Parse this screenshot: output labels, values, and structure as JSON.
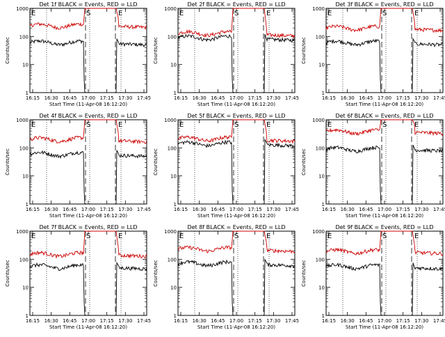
{
  "chart_data": [
    {
      "type": "line",
      "title": "Det 1f BLACK = Events, RED = LLD",
      "ylabel": "Counts/sec",
      "xlabel": "Start Time (11-Apr-08 16:12:20)",
      "xticks": [
        "16:15",
        "16:30",
        "16:45",
        "17:00",
        "17:15",
        "17:30",
        "17:45"
      ],
      "yticks": [
        "1",
        "10",
        "100",
        "1000"
      ],
      "ylim": [
        1,
        1000
      ],
      "yscale": "log",
      "markers": [
        "E",
        "S",
        "E"
      ],
      "series": [
        {
          "name": "Events",
          "color": "#000000",
          "level_before": 60,
          "level_after": 55
        },
        {
          "name": "LLD",
          "color": "#cc0000",
          "level_before": 240,
          "level_after": 230
        }
      ]
    },
    {
      "type": "line",
      "title": "Det 2f BLACK = Events, RED = LLD",
      "ylabel": "Counts/sec",
      "xlabel": "Start Time (11-Apr-08 16:12:20)",
      "xticks": [
        "16:15",
        "16:30",
        "16:45",
        "17:00",
        "17:15",
        "17:30",
        "17:45"
      ],
      "yticks": [
        "1",
        "10",
        "100",
        "1000"
      ],
      "ylim": [
        1,
        1000
      ],
      "yscale": "log",
      "markers": [
        "E",
        "S",
        "E"
      ],
      "series": [
        {
          "name": "Events",
          "color": "#000000",
          "level_before": 90,
          "level_after": 80
        },
        {
          "name": "LLD",
          "color": "#cc0000",
          "level_before": 130,
          "level_after": 115
        }
      ]
    },
    {
      "type": "line",
      "title": "Det 3f BLACK = Events, RED = LLD",
      "ylabel": "Counts/sec",
      "xlabel": "Start Time (11-Apr-08 16:12:20)",
      "xticks": [
        "16:15",
        "16:30",
        "16:45",
        "17:00",
        "17:15",
        "17:30",
        "17:45"
      ],
      "yticks": [
        "1",
        "10",
        "100",
        "1000"
      ],
      "ylim": [
        1,
        1000
      ],
      "yscale": "log",
      "markers": [
        "E",
        "S",
        "E"
      ],
      "series": [
        {
          "name": "Events",
          "color": "#000000",
          "level_before": 60,
          "level_after": 55
        },
        {
          "name": "LLD",
          "color": "#cc0000",
          "level_before": 200,
          "level_after": 180
        }
      ]
    },
    {
      "type": "line",
      "title": "Det 4f BLACK = Events, RED = LLD",
      "ylabel": "Counts/sec",
      "xlabel": "Start Time (11-Apr-08 16:12:20)",
      "xticks": [
        "16:15",
        "16:30",
        "16:45",
        "17:00",
        "17:15",
        "17:30",
        "17:45"
      ],
      "yticks": [
        "1",
        "10",
        "100",
        "1000"
      ],
      "ylim": [
        1,
        1000
      ],
      "yscale": "log",
      "markers": [
        "E",
        "S",
        "E"
      ],
      "series": [
        {
          "name": "Events",
          "color": "#000000",
          "level_before": 60,
          "level_after": 55
        },
        {
          "name": "LLD",
          "color": "#cc0000",
          "level_before": 200,
          "level_after": 180
        }
      ]
    },
    {
      "type": "line",
      "title": "Det 5f BLACK = Events, RED = LLD",
      "ylabel": "Counts/sec",
      "xlabel": "Start Time (11-Apr-08 16:12:20)",
      "xticks": [
        "16:15",
        "16:30",
        "16:45",
        "17:00",
        "17:15",
        "17:30",
        "17:45"
      ],
      "yticks": [
        "1",
        "10",
        "100",
        "1000"
      ],
      "ylim": [
        1,
        1000
      ],
      "yscale": "log",
      "markers": [
        "E",
        "S",
        "E"
      ],
      "series": [
        {
          "name": "Events",
          "color": "#000000",
          "level_before": 140,
          "level_after": 130
        },
        {
          "name": "LLD",
          "color": "#cc0000",
          "level_before": 210,
          "level_after": 190
        }
      ]
    },
    {
      "type": "line",
      "title": "Det 6f BLACK = Events, RED = LLD",
      "ylabel": "Counts/sec",
      "xlabel": "Start Time (11-Apr-08 16:12:20)",
      "xticks": [
        "16:15",
        "16:30",
        "16:45",
        "17:00",
        "17:15",
        "17:30",
        "17:45"
      ],
      "yticks": [
        "1",
        "10",
        "100",
        "1000"
      ],
      "ylim": [
        1,
        1000
      ],
      "yscale": "log",
      "markers": [
        "E",
        "S",
        "E"
      ],
      "series": [
        {
          "name": "Events",
          "color": "#000000",
          "level_before": 90,
          "level_after": 85
        },
        {
          "name": "LLD",
          "color": "#cc0000",
          "level_before": 380,
          "level_after": 360
        }
      ]
    },
    {
      "type": "line",
      "title": "Det 7f BLACK = Events, RED = LLD",
      "ylabel": "Counts/sec",
      "xlabel": "Start Time (11-Apr-08 16:12:20)",
      "xticks": [
        "16:15",
        "16:30",
        "16:45",
        "17:00",
        "17:15",
        "17:30",
        "17:45"
      ],
      "yticks": [
        "1",
        "10",
        "100",
        "1000"
      ],
      "ylim": [
        1,
        1000
      ],
      "yscale": "log",
      "markers": [
        "E",
        "S",
        "E"
      ],
      "series": [
        {
          "name": "Events",
          "color": "#000000",
          "level_before": 55,
          "level_after": 50
        },
        {
          "name": "LLD",
          "color": "#cc0000",
          "level_before": 150,
          "level_after": 140
        }
      ]
    },
    {
      "type": "line",
      "title": "Det 8f BLACK = Events, RED = LLD",
      "ylabel": "Counts/sec",
      "xlabel": "Start Time (11-Apr-08 16:12:20)",
      "xticks": [
        "16:15",
        "16:30",
        "16:45",
        "17:00",
        "17:15",
        "17:30",
        "17:45"
      ],
      "yticks": [
        "1",
        "10",
        "100",
        "1000"
      ],
      "ylim": [
        1,
        1000
      ],
      "yscale": "log",
      "markers": [
        "E",
        "S",
        "E"
      ],
      "series": [
        {
          "name": "Events",
          "color": "#000000",
          "level_before": 70,
          "level_after": 65
        },
        {
          "name": "LLD",
          "color": "#cc0000",
          "level_before": 230,
          "level_after": 210
        }
      ]
    },
    {
      "type": "line",
      "title": "Det 9f BLACK = Events, RED = LLD",
      "ylabel": "Counts/sec",
      "xlabel": "Start Time (11-Apr-08 16:12:20)",
      "xticks": [
        "16:15",
        "16:30",
        "16:45",
        "17:00",
        "17:15",
        "17:30",
        "17:45"
      ],
      "yticks": [
        "1",
        "10",
        "100",
        "1000"
      ],
      "ylim": [
        1,
        1000
      ],
      "yscale": "log",
      "markers": [
        "E",
        "S",
        "E"
      ],
      "series": [
        {
          "name": "Events",
          "color": "#000000",
          "level_before": 55,
          "level_after": 50
        },
        {
          "name": "LLD",
          "color": "#cc0000",
          "level_before": 190,
          "level_after": 175
        }
      ]
    }
  ]
}
